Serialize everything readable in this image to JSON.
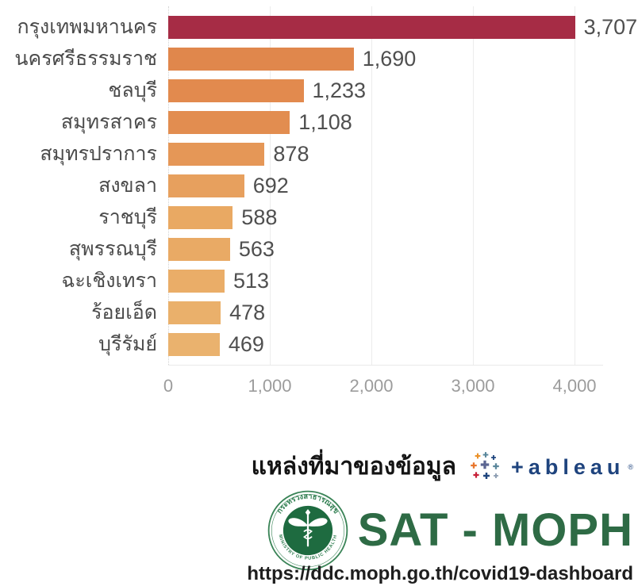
{
  "chart_data": {
    "type": "bar",
    "orientation": "horizontal",
    "title": "",
    "categories": [
      "กรุงเทพมหานคร",
      "นครศรีธรรมราช",
      "ชลบุรี",
      "สมุทรสาคร",
      "สมุทรปราการ",
      "สงขลา",
      "ราชบุรี",
      "สุพรรณบุรี",
      "ฉะเชิงเทรา",
      "ร้อยเอ็ด",
      "บุรีรัมย์"
    ],
    "values": [
      3707,
      1690,
      1233,
      1108,
      878,
      692,
      588,
      563,
      513,
      478,
      469
    ],
    "value_labels": [
      "3,707",
      "1,690",
      "1,233",
      "1,108",
      "878",
      "692",
      "588",
      "563",
      "513",
      "478",
      "469"
    ],
    "bar_colors": [
      "#a62c45",
      "#e0874c",
      "#e28a4e",
      "#e28d50",
      "#e59757",
      "#e7a05e",
      "#e9a963",
      "#e9aa65",
      "#eaad68",
      "#eab06b",
      "#eab26e"
    ],
    "x_ticks": [
      0,
      1000,
      2000,
      3000,
      4000
    ],
    "x_tick_labels": [
      "0",
      "1,000",
      "2,000",
      "3,000",
      "4,000"
    ],
    "xlim": [
      0,
      4281
    ],
    "grid": "vertical-light",
    "legend": "none"
  },
  "footer": {
    "source_label": "แหล่งที่มาของข้อมูล",
    "tableau": {
      "wordmark": "+ableau",
      "registered_mark": "®",
      "navy": "#1f447e"
    },
    "org": {
      "name": "SAT - MOPH",
      "url": "https://ddc.moph.go.th/covid19-dashboard",
      "green": "#2e6b45"
    },
    "seal": {
      "text_top": "กระทรวงสาธารณสุข",
      "text_bottom": "MINISTRY OF PUBLIC HEALTH",
      "green": "#2e7d4f",
      "dark_green": "#1e6b40"
    }
  }
}
